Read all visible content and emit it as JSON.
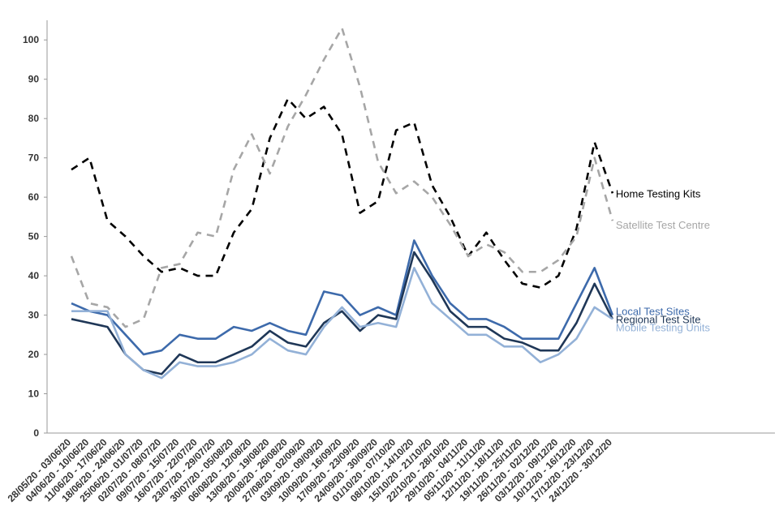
{
  "chart_data": {
    "type": "line",
    "categories": [
      "28/05/20 - 03/06/20",
      "04/06/20 - 10/06/20",
      "11/06/20 - 17/06/20",
      "18/06/20 - 24/06/20",
      "25/06/20 - 01/07/20",
      "02/07/20 - 08/07/20",
      "09/07/20 - 15/07/20",
      "16/07/20 - 22/07/20",
      "23/07/20 - 29/07/20",
      "30/07/20 - 05/08/20",
      "06/08/20 - 12/08/20",
      "13/08/20 - 19/08/20",
      "20/08/20 - 26/08/20",
      "27/08/20 - 02/09/20",
      "03/09/20 - 09/09/20",
      "10/09/20 - 16/09/20",
      "17/09/20 - 23/09/20",
      "24/09/20 - 30/09/20",
      "01/10/20 - 07/10/20",
      "08/10/20 - 14/10/20",
      "15/10/20 - 21/10/20",
      "22/10/20 - 28/10/20",
      "29/10/20 - 04/11/20",
      "05/11/20 - 11/11/20",
      "12/11/20 - 18/11/20",
      "19/11/20 - 25/11/20",
      "26/11/20 - 02/12/20",
      "03/12/20 - 09/12/20",
      "10/12/20 - 16/12/20",
      "17/12/20 - 23/12/20",
      "24/12/20 - 30/12/20"
    ],
    "series": [
      {
        "name": "Home Testing Kits",
        "color": "#000000",
        "dashed": true,
        "values": [
          67,
          70,
          54,
          50,
          45,
          41,
          42,
          40,
          40,
          51,
          57,
          75,
          85,
          80,
          83,
          76,
          56,
          59,
          77,
          79,
          63,
          55,
          45,
          51,
          44,
          38,
          37,
          40,
          52,
          74,
          61
        ]
      },
      {
        "name": "Satellite Test Centre",
        "color": "#a6a6a6",
        "dashed": true,
        "values": [
          45,
          33,
          32,
          27,
          29,
          42,
          43,
          51,
          50,
          67,
          76,
          66,
          78,
          86,
          95,
          103,
          88,
          69,
          61,
          64,
          60,
          53,
          45,
          48,
          46,
          41,
          41,
          44,
          50,
          70,
          54
        ]
      },
      {
        "name": "Local Test Sites",
        "color": "#3d6aab",
        "dashed": false,
        "values": [
          33,
          31,
          30,
          25,
          20,
          21,
          25,
          24,
          24,
          27,
          26,
          28,
          26,
          25,
          36,
          35,
          30,
          32,
          30,
          49,
          40,
          33,
          29,
          29,
          27,
          24,
          24,
          24,
          33,
          42,
          30
        ]
      },
      {
        "name": "Regional Test Site",
        "color": "#1f3757",
        "dashed": false,
        "values": [
          29,
          28,
          27,
          20,
          16,
          15,
          20,
          18,
          18,
          20,
          22,
          26,
          23,
          22,
          28,
          31,
          26,
          30,
          29,
          46,
          39,
          31,
          27,
          27,
          24,
          23,
          21,
          21,
          28,
          38,
          29
        ]
      },
      {
        "name": "Mobile Testing Units",
        "color": "#93b1d7",
        "dashed": false,
        "values": [
          31,
          31,
          31,
          20,
          16,
          14,
          18,
          17,
          17,
          18,
          20,
          24,
          21,
          20,
          27,
          32,
          27,
          28,
          27,
          42,
          33,
          29,
          25,
          25,
          22,
          22,
          18,
          20,
          24,
          32,
          29
        ]
      }
    ],
    "ylim": [
      0,
      105
    ],
    "yticks": [
      0,
      10,
      20,
      30,
      40,
      50,
      60,
      70,
      80,
      90,
      100
    ],
    "grid": false
  }
}
